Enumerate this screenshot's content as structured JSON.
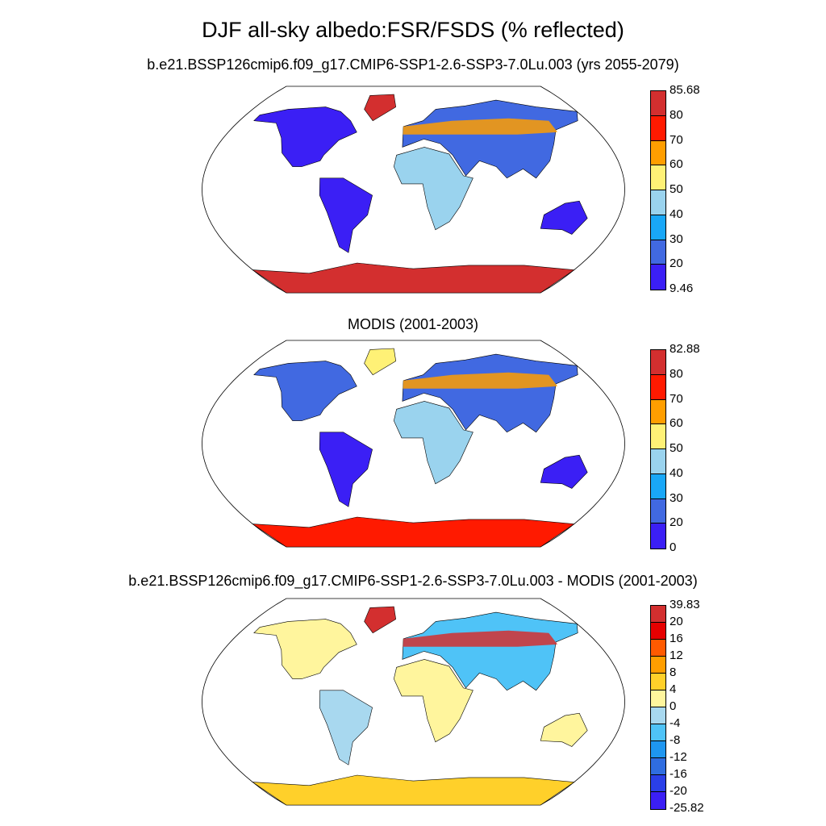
{
  "title": "DJF all-sky albedo:FSR/FSDS (% reflected)",
  "panels": [
    {
      "title": "b.e21.BSSP126cmip6.f09_g17.CMIP6-SSP1-2.6-SSP3-7.0Lu.003 (yrs 2055-2079)",
      "colorbar": {
        "labels": [
          "85.68",
          "80",
          "70",
          "60",
          "50",
          "40",
          "30",
          "20",
          "9.46"
        ],
        "colors": [
          "#d32f2f",
          "#ff1a00",
          "#ff9e00",
          "#fff176",
          "#9ad3ee",
          "#19a7f7",
          "#4169e1",
          "#3b1ff5"
        ]
      }
    },
    {
      "title": "MODIS (2001-2003)",
      "colorbar": {
        "labels": [
          "82.88",
          "80",
          "70",
          "60",
          "50",
          "40",
          "30",
          "20",
          "0"
        ],
        "colors": [
          "#d32f2f",
          "#ff1a00",
          "#ff9e00",
          "#fff176",
          "#9ad3ee",
          "#19a7f7",
          "#4169e1",
          "#3b1ff5"
        ]
      }
    },
    {
      "title": "b.e21.BSSP126cmip6.f09_g17.CMIP6-SSP1-2.6-SSP3-7.0Lu.003 - MODIS (2001-2003)",
      "colorbar": {
        "labels": [
          "39.83",
          "20",
          "16",
          "12",
          "8",
          "4",
          "0",
          "-4",
          "-8",
          "-12",
          "-16",
          "-20",
          "-25.82"
        ],
        "colors": [
          "#d32f2f",
          "#e60000",
          "#ff5a00",
          "#ff9e00",
          "#ffd02a",
          "#fff59d",
          "#a8d8ef",
          "#4fc3f7",
          "#1e96f0",
          "#2f6de0",
          "#2a3fe8",
          "#3b1ff5"
        ]
      }
    }
  ]
}
